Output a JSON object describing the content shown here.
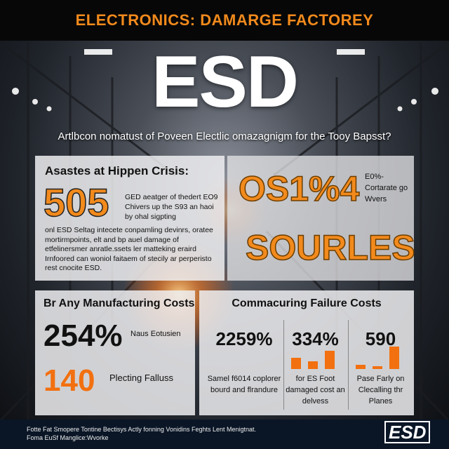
{
  "header": {
    "headline": "ELECTRONICS: DAMARGE FACTOREY",
    "big_title": "ESD",
    "subtitle": "Artlbcon nomatust of Poveen Electlic omazagnigm for the Tooy Bapsst?"
  },
  "panel_crisis": {
    "title": "Asastes at Hippen Crisis:",
    "number": "505",
    "desc": "GED aeatger of thedert EO9 Chivers up the S93 an haoi by ohal sigpting",
    "body": "onl ESD Seltag intecete conpamling devinrs, oratee mortirmpoints, elt and bp auel damage of etfelinersmer anratle.ssets ler matteking eraird Irnfoored can woniol faitaem of stecily ar perperisto rest cnocite ESD."
  },
  "panel_stats": {
    "number": "OS1%4",
    "side": "E0%- Cortarate go Wvers",
    "word": "SOURLES"
  },
  "panel_manufacturing": {
    "title": "Br Any Manufacturing Costs",
    "stat1_value": "254%",
    "stat1_label": "Naus Eotusien",
    "stat2_value": "140",
    "stat2_label": "Plecting Falluss"
  },
  "panel_failure": {
    "title": "Commacuring Failure Costs",
    "columns": [
      {
        "value": "2259%",
        "label": "Samel f6014 coplorer bourd and flrandure"
      },
      {
        "value": "334%",
        "label": "for ES Foot damaged cost an delvess"
      },
      {
        "value": "590",
        "label": "Pase Farly on Clecalling thr Planes"
      }
    ],
    "bar_values": [
      0.5,
      0.35,
      0.8
    ],
    "bar_color": "#f2700f"
  },
  "footer": {
    "line1": "Fotte Fat Smopere Tontine Bectisys Actly fonning Vonidins Feghts Lent Menigtnat.",
    "line2": "Foma EuSf Manglice:Wvorke",
    "logo": "ESD"
  },
  "colors": {
    "accent": "#f28a1c",
    "accent_dark": "#f2700f"
  }
}
